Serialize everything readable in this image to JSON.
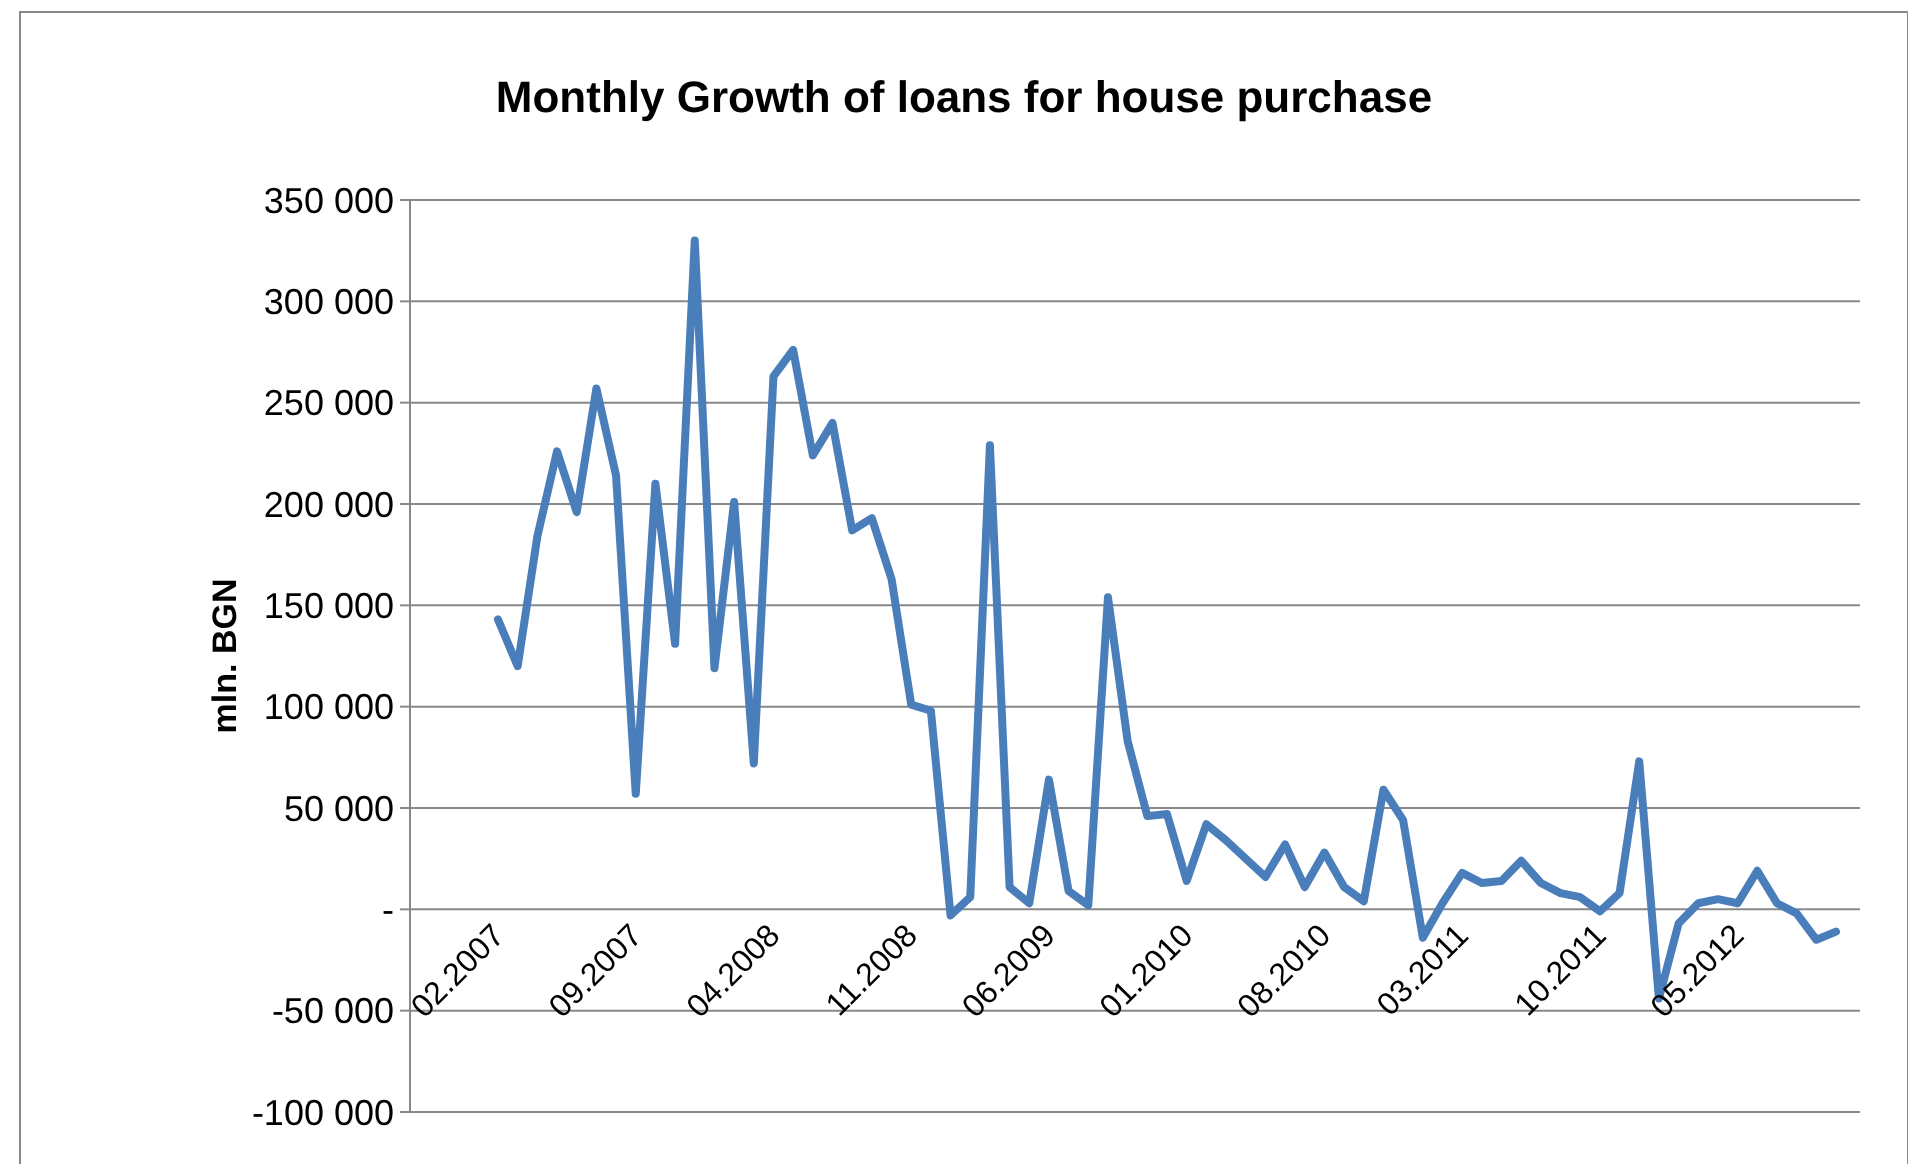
{
  "chart_data": {
    "type": "line",
    "title": "Monthly Growth of loans for house purchase",
    "ylabel": "mln. BGN",
    "categories": [
      "02.2007",
      null,
      null,
      null,
      null,
      null,
      null,
      "09.2007",
      null,
      null,
      null,
      null,
      null,
      null,
      "04.2008",
      null,
      null,
      null,
      null,
      null,
      null,
      "11.2008",
      null,
      null,
      null,
      null,
      null,
      null,
      "06.2009",
      null,
      null,
      null,
      null,
      null,
      null,
      "01.2010",
      null,
      null,
      null,
      null,
      null,
      null,
      "08.2010",
      null,
      null,
      null,
      null,
      null,
      null,
      "03.2011",
      null,
      null,
      null,
      null,
      null,
      null,
      "10.2011",
      null,
      null,
      null,
      null,
      null,
      null,
      "05.2012",
      null,
      null,
      null,
      null,
      null
    ],
    "series": [
      {
        "color": "#4a7ebb",
        "values": [
          143000,
          120000,
          184000,
          226000,
          196000,
          257000,
          214000,
          57000,
          210000,
          131000,
          330000,
          119000,
          201000,
          72000,
          263000,
          276000,
          224000,
          240000,
          187000,
          193000,
          163000,
          101000,
          98000,
          -3000,
          6000,
          229000,
          11000,
          3000,
          64000,
          9000,
          2000,
          154000,
          83000,
          46000,
          47000,
          14000,
          42000,
          34000,
          25000,
          16000,
          32000,
          11000,
          28000,
          11000,
          4000,
          59000,
          44000,
          -14000,
          3000,
          18000,
          13000,
          14000,
          24000,
          13000,
          8000,
          6000,
          -1000,
          8000,
          73000,
          -44000,
          -7000,
          3000,
          5000,
          3000,
          19000,
          3000,
          -2000,
          -15000,
          -11000
        ]
      }
    ],
    "ylim": [
      -100000,
      350000
    ],
    "yticks": [
      {
        "value": -100000,
        "label": "-100 000"
      },
      {
        "value": -50000,
        "label": "-50 000"
      },
      {
        "value": 0,
        "label": "-"
      },
      {
        "value": 50000,
        "label": "50 000"
      },
      {
        "value": 100000,
        "label": "100 000"
      },
      {
        "value": 150000,
        "label": "150 000"
      },
      {
        "value": 200000,
        "label": "200 000"
      },
      {
        "value": 250000,
        "label": "250 000"
      },
      {
        "value": 300000,
        "label": "300 000"
      },
      {
        "value": 350000,
        "label": "350 000"
      }
    ],
    "grid": "y",
    "marker": "none",
    "line_style": "solid"
  }
}
